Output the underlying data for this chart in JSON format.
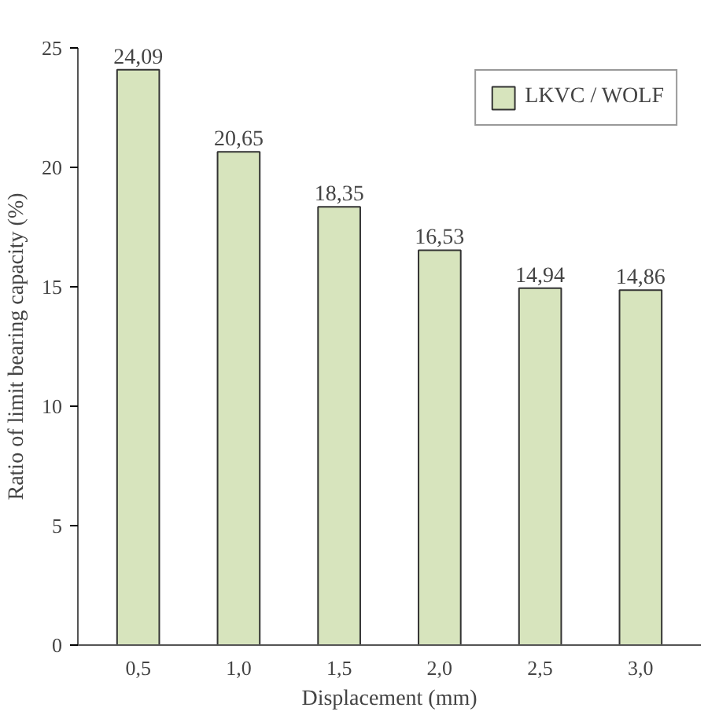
{
  "chart_data": {
    "type": "bar",
    "xlabel": "Displacement (mm)",
    "ylabel": "Ratio of limit bearing capacity (%)",
    "categories": [
      "0,5",
      "1,0",
      "1,5",
      "2,0",
      "2,5",
      "3,0"
    ],
    "series": [
      {
        "name": "LKVC / WOLF",
        "color": "#d7e4bd",
        "values": [
          24.09,
          20.65,
          18.35,
          16.53,
          14.94,
          14.86
        ],
        "value_labels": [
          "24,09",
          "20,65",
          "18,35",
          "16,53",
          "14,94",
          "14,86"
        ]
      }
    ],
    "ylim": [
      0,
      25
    ],
    "yticks": [
      0,
      5,
      10,
      15,
      20,
      25
    ],
    "grid": false,
    "legend": "top right"
  }
}
